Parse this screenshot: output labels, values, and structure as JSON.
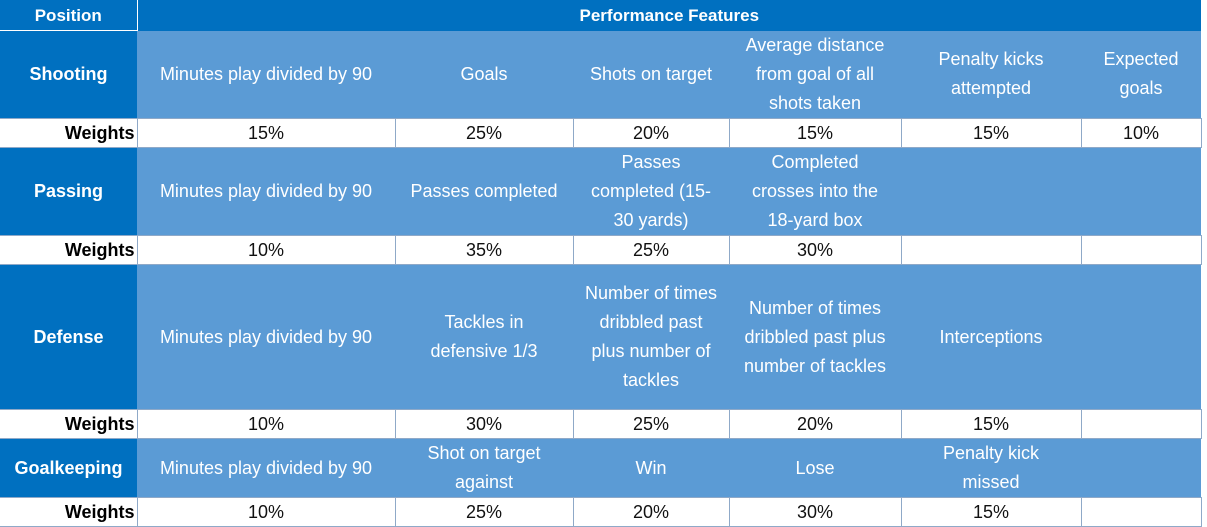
{
  "header": {
    "position": "Position",
    "features": "Performance Features"
  },
  "weights_label": "Weights",
  "sections": [
    {
      "name": "Shooting",
      "features": [
        "Minutes play divided by 90",
        "Goals",
        "Shots on target",
        "Average distance from goal of all shots taken",
        "Penalty kicks attempted",
        "Expected goals"
      ],
      "weights": [
        "15%",
        "25%",
        "20%",
        "15%",
        "15%",
        "10%"
      ]
    },
    {
      "name": "Passing",
      "features": [
        "Minutes play divided by 90",
        "Passes completed",
        "Passes completed (15-30 yards)",
        "Completed crosses into the 18-yard box",
        "",
        ""
      ],
      "weights": [
        "10%",
        "35%",
        "25%",
        "30%",
        "",
        ""
      ]
    },
    {
      "name": "Defense",
      "features": [
        "Minutes play divided by 90",
        "Tackles in defensive 1/3",
        "Number of times dribbled past plus number of tackles",
        "Number of times dribbled past plus number of tackles",
        "Interceptions",
        ""
      ],
      "weights": [
        "10%",
        "30%",
        "25%",
        "20%",
        "15%",
        ""
      ]
    },
    {
      "name": "Goalkeeping",
      "features": [
        "Minutes play divided by 90",
        "Shot on target against",
        "Win",
        "Lose",
        "Penalty kick missed",
        ""
      ],
      "weights": [
        "10%",
        "25%",
        "20%",
        "30%",
        "15%",
        ""
      ]
    }
  ]
}
